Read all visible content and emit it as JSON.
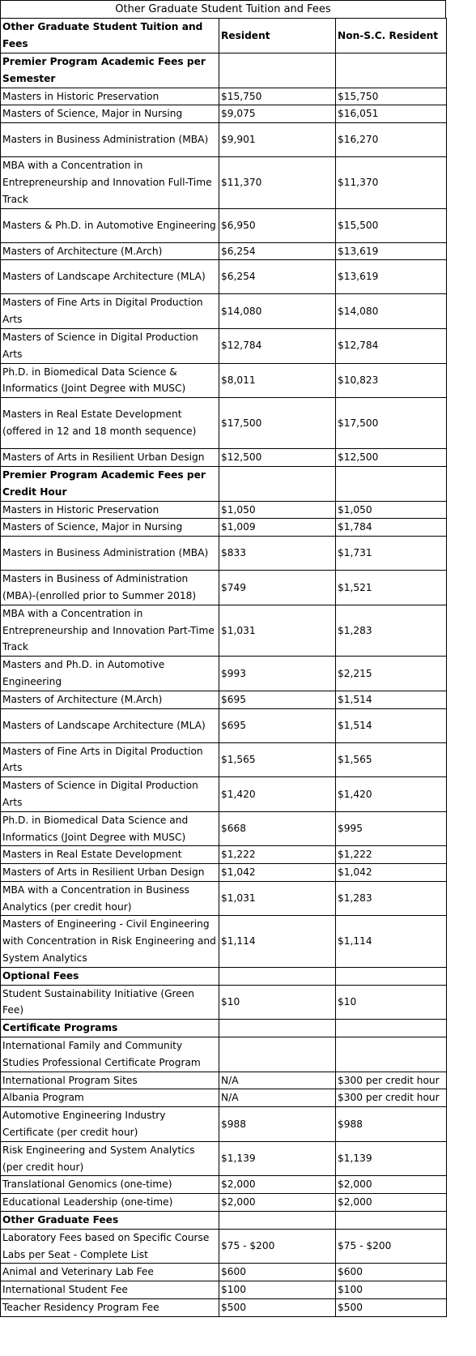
{
  "title": "Other Graduate Student Tuition and Fees",
  "header": [
    "Other Graduate Student Tuition and Fees",
    "Resident",
    "Non-S.C. Resident"
  ],
  "rows": [
    {
      "type": "section",
      "c": [
        "Premier Program Academic Fees per Semester",
        "",
        ""
      ],
      "h": 42
    },
    {
      "c": [
        "Masters in Historic Preservation",
        "$15,750",
        "$15,750"
      ]
    },
    {
      "c": [
        "Masters of Science, Major in Nursing",
        "$9,075",
        "$16,051"
      ]
    },
    {
      "c": [
        "Masters in Business Administration (MBA)",
        "$9,901",
        "$16,270"
      ],
      "h": 42
    },
    {
      "c": [
        "MBA with a Concentration in Entrepreneurship and Innovation Full-Time Track",
        "$11,370",
        "$11,370"
      ],
      "h": 63
    },
    {
      "c": [
        "Masters & Ph.D. in Automotive Engineering",
        "$6,950",
        "$15,500"
      ],
      "h": 42
    },
    {
      "c": [
        "Masters of Architecture (M.Arch)",
        "$6,254",
        "$13,619"
      ]
    },
    {
      "c": [
        "Masters of Landscape Architecture (MLA)",
        "$6,254",
        "$13,619"
      ],
      "h": 42
    },
    {
      "c": [
        "Masters of Fine Arts in Digital Production Arts",
        "$14,080",
        "$14,080"
      ],
      "h": 42
    },
    {
      "c": [
        "Masters of Science in Digital Production Arts",
        "$12,784",
        "$12,784"
      ],
      "h": 42
    },
    {
      "c": [
        "Ph.D. in Biomedical Data Science & Informatics (Joint Degree with MUSC)",
        "$8,011",
        "$10,823"
      ],
      "h": 42
    },
    {
      "c": [
        "Masters in Real Estate Development (offered in 12 and 18 month sequence)",
        "$17,500",
        "$17,500"
      ],
      "h": 63
    },
    {
      "c": [
        "Masters of Arts in Resilient Urban Design",
        "$12,500",
        "$12,500"
      ]
    },
    {
      "type": "section",
      "c": [
        "Premier Program Academic Fees per Credit Hour",
        "",
        ""
      ],
      "h": 42
    },
    {
      "c": [
        "Masters in Historic Preservation",
        "$1,050",
        "$1,050"
      ]
    },
    {
      "c": [
        "Masters of Science, Major in Nursing",
        "$1,009",
        "$1,784"
      ]
    },
    {
      "c": [
        "Masters in Business Administration (MBA)",
        "$833",
        "$1,731"
      ],
      "h": 42
    },
    {
      "c": [
        "Masters in Business of Administration (MBA)-(enrolled prior to Summer 2018)",
        "$749",
        "$1,521"
      ],
      "h": 42
    },
    {
      "c": [
        "MBA with a Concentration in Entrepreneurship and Innovation Part-Time Track",
        "$1,031",
        "$1,283"
      ],
      "h": 63
    },
    {
      "c": [
        "Masters and Ph.D. in Automotive Engineering",
        "$993",
        "$2,215"
      ],
      "h": 42
    },
    {
      "c": [
        "Masters of Architecture (M.Arch)",
        "$695",
        "$1,514"
      ]
    },
    {
      "c": [
        "Masters of Landscape Architecture (MLA)",
        "$695",
        "$1,514"
      ],
      "h": 42
    },
    {
      "c": [
        "Masters of Fine Arts in Digital Production Arts",
        "$1,565",
        "$1,565"
      ],
      "h": 42
    },
    {
      "c": [
        "Masters of Science in Digital Production Arts",
        "$1,420",
        "$1,420"
      ],
      "h": 42
    },
    {
      "c": [
        "Ph.D. in Biomedical Data Science and Informatics (Joint Degree with MUSC)",
        "$668",
        "$995"
      ],
      "h": 42
    },
    {
      "c": [
        "Masters in Real Estate Development",
        "$1,222",
        "$1,222"
      ]
    },
    {
      "c": [
        "Masters of Arts in Resilient Urban Design",
        "$1,042",
        "$1,042"
      ]
    },
    {
      "c": [
        "MBA with a Concentration in Business Analytics (per credit hour)",
        "$1,031",
        "$1,283"
      ],
      "h": 42
    },
    {
      "c": [
        "Masters of Engineering - Civil Engineering with Concentration in Risk Engineering and System Analytics",
        "$1,114",
        "$1,114"
      ],
      "h": 63
    },
    {
      "type": "section",
      "c": [
        "Optional Fees",
        "",
        ""
      ]
    },
    {
      "c": [
        "Student Sustainability Initiative (Green Fee)",
        "$10",
        "$10"
      ],
      "h": 42
    },
    {
      "type": "section",
      "c": [
        "Certificate Programs",
        "",
        ""
      ]
    },
    {
      "c": [
        "International Family and Community Studies Professional Certificate Program",
        "",
        ""
      ],
      "h": 42
    },
    {
      "c": [
        "International Program Sites",
        "N/A",
        "$300 per credit hour"
      ]
    },
    {
      "c": [
        "Albania Program",
        "N/A",
        "$300 per credit hour"
      ]
    },
    {
      "c": [
        "Automotive Engineering Industry Certificate (per credit hour)",
        "$988",
        "$988"
      ],
      "h": 42
    },
    {
      "c": [
        "Risk Engineering and System Analytics (per credit hour)",
        "$1,139",
        "$1,139"
      ],
      "h": 42
    },
    {
      "c": [
        "Translational Genomics (one-time)",
        "$2,000",
        "$2,000"
      ]
    },
    {
      "c": [
        "Educational Leadership (one-time)",
        "$2,000",
        "$2,000"
      ]
    },
    {
      "type": "section",
      "c": [
        "Other Graduate Fees",
        "",
        ""
      ]
    },
    {
      "c": [
        "Laboratory Fees based on Specific Course Labs per Seat - Complete List",
        "$75 - $200",
        "$75 - $200"
      ],
      "h": 42
    },
    {
      "c": [
        "Animal and Veterinary Lab Fee",
        "$600",
        "$600"
      ]
    },
    {
      "c": [
        "International Student Fee",
        "$100",
        "$100"
      ]
    },
    {
      "c": [
        "Teacher Residency Program Fee",
        "$500",
        "$500"
      ]
    }
  ]
}
